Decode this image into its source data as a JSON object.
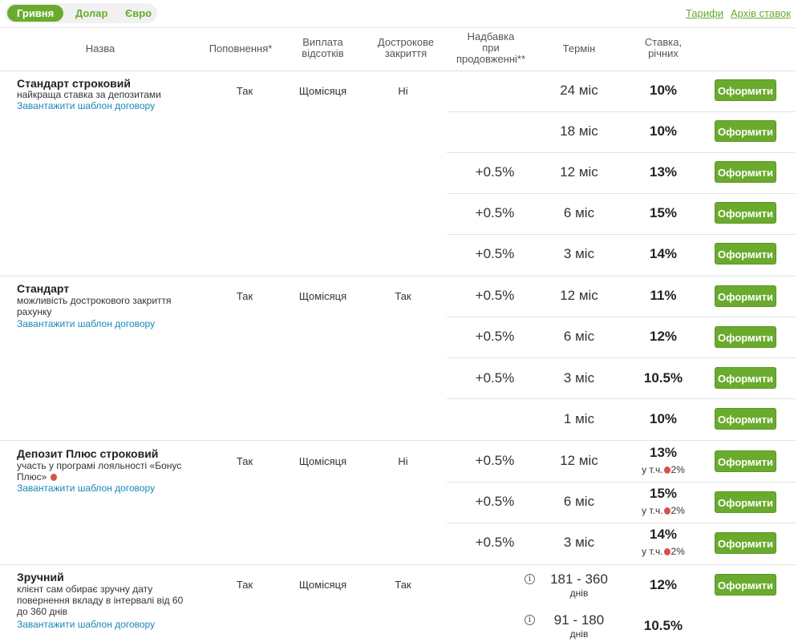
{
  "currency_tabs": [
    "Гривня",
    "Долар",
    "Євро"
  ],
  "links": {
    "tariffs": "Тарифи",
    "archive": "Архів ставок"
  },
  "headers": {
    "name": "Назва",
    "replenish": "Поповнення*",
    "payout_1": "Виплата",
    "payout_2": "відсотків",
    "early_1": "Дострокове",
    "early_2": "закриття",
    "bonus_1": "Надбавка",
    "bonus_2": "при",
    "bonus_3": "продовженні**",
    "term": "Термін",
    "rate_1": "Ставка,",
    "rate_2": "річних"
  },
  "common": {
    "download": "Завантажити шаблон договору",
    "apply": "Оформити",
    "incl": "у т.ч."
  },
  "deposits": [
    {
      "name": "Стандарт строковий",
      "desc": [
        "найкраща ставка за депозитами"
      ],
      "replenish": "Так",
      "payout": "Щомісяця",
      "early_close": "Ні",
      "rows": [
        {
          "bonus": "",
          "term": "24 міс",
          "rate": "10%"
        },
        {
          "bonus": "",
          "term": "18 міс",
          "rate": "10%"
        },
        {
          "bonus": "+0.5%",
          "term": "12 міс",
          "rate": "13%"
        },
        {
          "bonus": "+0.5%",
          "term": "6 міс",
          "rate": "15%"
        },
        {
          "bonus": "+0.5%",
          "term": "3 міс",
          "rate": "14%"
        }
      ]
    },
    {
      "name": "Стандарт",
      "desc": [
        "можливість дострокового закриття",
        "рахунку"
      ],
      "replenish": "Так",
      "payout": "Щомісяця",
      "early_close": "Так",
      "rows": [
        {
          "bonus": "+0.5%",
          "term": "12 міс",
          "rate": "11%"
        },
        {
          "bonus": "+0.5%",
          "term": "6 міс",
          "rate": "12%"
        },
        {
          "bonus": "+0.5%",
          "term": "3 міс",
          "rate": "10.5%"
        },
        {
          "bonus": "",
          "term": "1 міс",
          "rate": "10%"
        }
      ]
    },
    {
      "name": "Депозит Плюс строковий",
      "desc": [
        "участь у програмі лояльності «Бонус",
        "Плюс»"
      ],
      "replenish": "Так",
      "payout": "Щомісяця",
      "early_close": "Ні",
      "rows": [
        {
          "bonus": "+0.5%",
          "term": "12 міс",
          "rate": "13%",
          "rate_bonus": "2%"
        },
        {
          "bonus": "+0.5%",
          "term": "6 міс",
          "rate": "15%",
          "rate_bonus": "2%"
        },
        {
          "bonus": "+0.5%",
          "term": "3 міс",
          "rate": "14%",
          "rate_bonus": "2%"
        }
      ]
    },
    {
      "name": "Зручний",
      "desc": [
        "клієнт сам обирає зручну дату",
        "повернення вкладу в інтервалі від 60",
        "до 360 днів"
      ],
      "replenish": "Так",
      "payout": "Щомісяця",
      "early_close": "Так",
      "rows": [
        {
          "bonus": "",
          "term": "181 - 360",
          "term_unit": "днів",
          "rate": "12%"
        },
        {
          "bonus": "",
          "term": "91 - 180",
          "term_unit": "днів",
          "rate": "10.5%"
        }
      ]
    }
  ],
  "colors": {
    "accent": "#6aab2e",
    "link": "#1a86b8",
    "dot": "#d9504a"
  }
}
